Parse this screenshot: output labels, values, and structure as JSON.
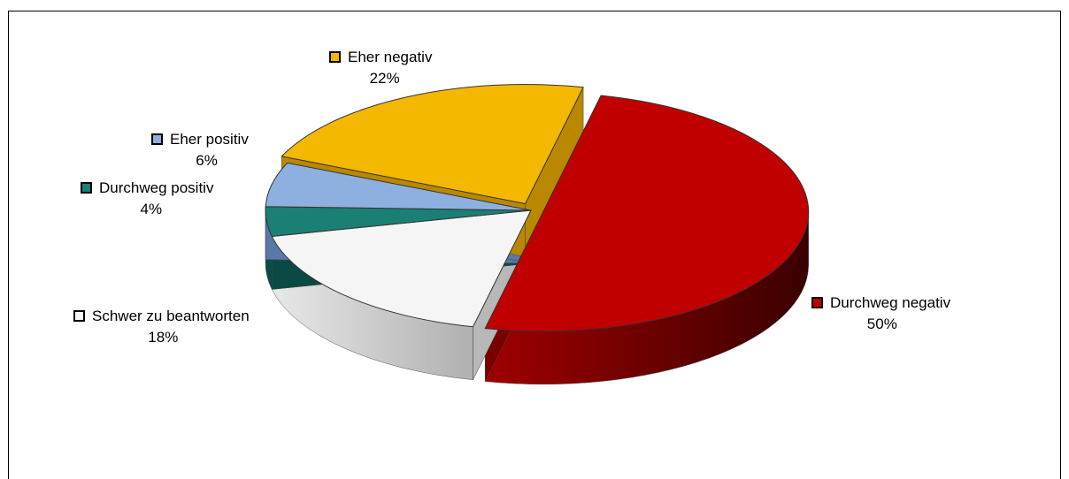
{
  "chart_data": {
    "type": "pie",
    "title": "",
    "categories": [
      "Durchweg negativ",
      "Schwer zu beantworten",
      "Durchweg positiv",
      "Eher positiv",
      "Eher negativ"
    ],
    "values": [
      50,
      18,
      4,
      6,
      22
    ],
    "value_labels": [
      "50%",
      "18%",
      "4%",
      "6%",
      "22%"
    ],
    "colors": [
      "#c00000",
      "#f5f5f5",
      "#1a7f74",
      "#8eb0e0",
      "#f4b800"
    ],
    "side_colors": [
      "#7a0000",
      "#b8b8b8",
      "#0b4a44",
      "#5a78a8",
      "#b98800"
    ],
    "exploded": [
      "Durchweg negativ",
      "Eher negativ"
    ],
    "three_d": true,
    "legend": "labels beside slices"
  }
}
